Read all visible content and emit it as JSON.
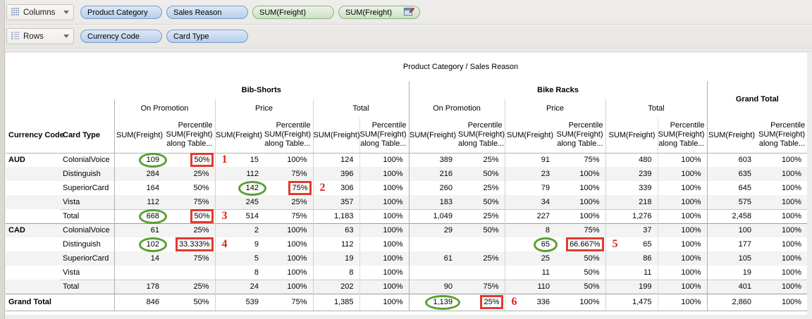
{
  "colors": {
    "dimension_pill_fill": "#b6cdeb",
    "dimension_pill_border": "#7b9cc7",
    "measure_pill_fill": "#cbe2c3",
    "measure_pill_border": "#8fae84",
    "annotation_ellipse": "#5ba033",
    "annotation_box": "#e23b2d",
    "annotation_number": "#d6271b",
    "row_band": "#f3f3f3"
  },
  "shelves": {
    "columns": {
      "label": "Columns",
      "pills": [
        {
          "label": "Product Category",
          "type": "dimension"
        },
        {
          "label": "Sales Reason",
          "type": "dimension"
        },
        {
          "label": "SUM(Freight)",
          "type": "measure"
        },
        {
          "label": "SUM(Freight)",
          "type": "measure",
          "icon": "table-calculation-icon"
        }
      ]
    },
    "rows": {
      "label": "Rows",
      "pills": [
        {
          "label": "Currency Code",
          "type": "dimension"
        },
        {
          "label": "Card Type",
          "type": "dimension"
        }
      ]
    }
  },
  "table": {
    "title": "Product Category / Sales Reason",
    "row_header_labels": [
      "Currency Code",
      "Card Type"
    ],
    "column_groups": [
      {
        "label": "Bib-Shorts",
        "subgroups": [
          "On Promotion",
          "Price",
          "Total"
        ]
      },
      {
        "label": "Bike Racks",
        "subgroups": [
          "On Promotion",
          "Price",
          "Total"
        ]
      },
      {
        "label": "Grand Total",
        "subgroups": []
      }
    ],
    "measure_header": {
      "sum": "SUM(Freight)",
      "pct_lines": [
        "Percentile",
        "SUM(Freight)",
        "along Table..."
      ]
    },
    "rows": [
      {
        "currency": "AUD",
        "card_type": "ColonialVoice",
        "values": [
          "109",
          "50%",
          "15",
          "100%",
          "124",
          "100%",
          "389",
          "25%",
          "91",
          "75%",
          "480",
          "100%",
          "603",
          "100%"
        ]
      },
      {
        "currency": "",
        "card_type": "Distinguish",
        "values": [
          "284",
          "25%",
          "112",
          "75%",
          "396",
          "100%",
          "216",
          "50%",
          "23",
          "100%",
          "239",
          "100%",
          "635",
          "100%"
        ]
      },
      {
        "currency": "",
        "card_type": "SuperiorCard",
        "values": [
          "164",
          "50%",
          "142",
          "75%",
          "306",
          "100%",
          "260",
          "25%",
          "79",
          "100%",
          "339",
          "100%",
          "645",
          "100%"
        ]
      },
      {
        "currency": "",
        "card_type": "Vista",
        "values": [
          "112",
          "75%",
          "245",
          "25%",
          "357",
          "100%",
          "183",
          "50%",
          "34",
          "100%",
          "218",
          "100%",
          "575",
          "100%"
        ]
      },
      {
        "currency": "",
        "card_type": "Total",
        "total": true,
        "values": [
          "668",
          "50%",
          "514",
          "75%",
          "1,183",
          "100%",
          "1,049",
          "25%",
          "227",
          "100%",
          "1,276",
          "100%",
          "2,458",
          "100%"
        ]
      },
      {
        "currency": "CAD",
        "card_type": "ColonialVoice",
        "section": true,
        "values": [
          "61",
          "25%",
          "2",
          "100%",
          "63",
          "100%",
          "29",
          "50%",
          "8",
          "75%",
          "37",
          "100%",
          "100",
          "100%"
        ]
      },
      {
        "currency": "",
        "card_type": "Distinguish",
        "values": [
          "102",
          "33.333%",
          "9",
          "100%",
          "112",
          "100%",
          "",
          "",
          "65",
          "66.667%",
          "65",
          "100%",
          "177",
          "100%"
        ]
      },
      {
        "currency": "",
        "card_type": "SuperiorCard",
        "values": [
          "14",
          "75%",
          "5",
          "100%",
          "19",
          "100%",
          "61",
          "25%",
          "25",
          "50%",
          "86",
          "100%",
          "105",
          "100%"
        ]
      },
      {
        "currency": "",
        "card_type": "Vista",
        "values": [
          "",
          "",
          "8",
          "100%",
          "8",
          "100%",
          "",
          "",
          "11",
          "50%",
          "11",
          "100%",
          "19",
          "100%"
        ]
      },
      {
        "currency": "",
        "card_type": "Total",
        "total": true,
        "values": [
          "178",
          "25%",
          "24",
          "100%",
          "202",
          "100%",
          "90",
          "75%",
          "110",
          "50%",
          "199",
          "100%",
          "401",
          "100%"
        ]
      },
      {
        "currency": "Grand Total",
        "card_type": "",
        "section": true,
        "grand": true,
        "values": [
          "846",
          "50%",
          "539",
          "75%",
          "1,385",
          "100%",
          "1,139",
          "25%",
          "336",
          "100%",
          "1,475",
          "100%",
          "2,860",
          "100%"
        ]
      }
    ]
  },
  "annotations": [
    {
      "number": "1",
      "row": 0,
      "circle_col": 0,
      "box_col": 1
    },
    {
      "number": "2",
      "row": 2,
      "circle_col": 2,
      "box_col": 3
    },
    {
      "number": "3",
      "row": 4,
      "circle_col": 0,
      "box_col": 1
    },
    {
      "number": "4",
      "row": 6,
      "circle_col": 0,
      "box_col": 1
    },
    {
      "number": "5",
      "row": 6,
      "circle_col": 8,
      "box_col": 9
    },
    {
      "number": "6",
      "row": 10,
      "circle_col": 6,
      "box_col": 7
    }
  ]
}
